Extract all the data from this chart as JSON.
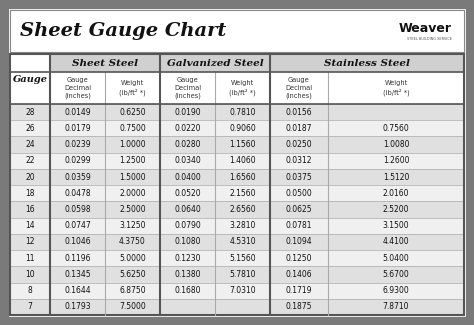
{
  "title": "Sheet Gauge Chart",
  "background_outer": "#7a7a7a",
  "background_inner": "#f2f2f2",
  "title_area_color": "#ffffff",
  "table_area_color": "#ffffff",
  "header1_bg": "#d0d0d0",
  "row_colors": [
    "#e0e0e0",
    "#f0f0f0"
  ],
  "border_color": "#555555",
  "light_border": "#aaaaaa",
  "gauges": [
    28,
    26,
    24,
    22,
    20,
    18,
    16,
    14,
    12,
    11,
    10,
    8,
    7
  ],
  "sheet_steel": [
    [
      "0.0149",
      "0.6250"
    ],
    [
      "0.0179",
      "0.7500"
    ],
    [
      "0.0239",
      "1.0000"
    ],
    [
      "0.0299",
      "1.2500"
    ],
    [
      "0.0359",
      "1.5000"
    ],
    [
      "0.0478",
      "2.0000"
    ],
    [
      "0.0598",
      "2.5000"
    ],
    [
      "0.0747",
      "3.1250"
    ],
    [
      "0.1046",
      "4.3750"
    ],
    [
      "0.1196",
      "5.0000"
    ],
    [
      "0.1345",
      "5.6250"
    ],
    [
      "0.1644",
      "6.8750"
    ],
    [
      "0.1793",
      "7.5000"
    ]
  ],
  "galvanized_steel": [
    [
      "0.0190",
      "0.7810"
    ],
    [
      "0.0220",
      "0.9060"
    ],
    [
      "0.0280",
      "1.1560"
    ],
    [
      "0.0340",
      "1.4060"
    ],
    [
      "0.0400",
      "1.6560"
    ],
    [
      "0.0520",
      "2.1560"
    ],
    [
      "0.0640",
      "2.6560"
    ],
    [
      "0.0790",
      "3.2810"
    ],
    [
      "0.1080",
      "4.5310"
    ],
    [
      "0.1230",
      "5.1560"
    ],
    [
      "0.1380",
      "5.7810"
    ],
    [
      "0.1680",
      "7.0310"
    ],
    [
      "",
      ""
    ]
  ],
  "stainless_steel": [
    [
      "0.0156",
      ""
    ],
    [
      "0.0187",
      "0.7560"
    ],
    [
      "0.0250",
      "1.0080"
    ],
    [
      "0.0312",
      "1.2600"
    ],
    [
      "0.0375",
      "1.5120"
    ],
    [
      "0.0500",
      "2.0160"
    ],
    [
      "0.0625",
      "2.5200"
    ],
    [
      "0.0781",
      "3.1500"
    ],
    [
      "0.1094",
      "4.4100"
    ],
    [
      "0.1250",
      "5.0400"
    ],
    [
      "0.1406",
      "5.6700"
    ],
    [
      "0.1719",
      "6.9300"
    ],
    [
      "0.1875",
      "7.8710"
    ]
  ],
  "fig_width": 4.74,
  "fig_height": 3.25,
  "dpi": 100
}
